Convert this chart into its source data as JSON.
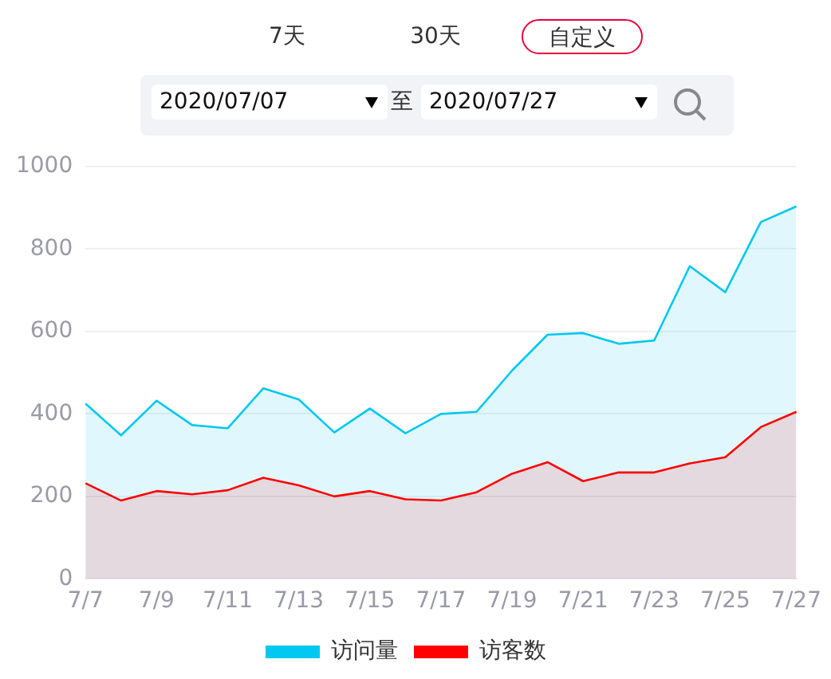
{
  "chart_data": {
    "type": "area",
    "categories": [
      "7/7",
      null,
      "7/9",
      null,
      "7/11",
      null,
      "7/13",
      null,
      "7/15",
      null,
      "7/17",
      null,
      "7/19",
      null,
      "7/21",
      null,
      "7/23",
      null,
      "7/25",
      null,
      "7/27"
    ],
    "series": [
      {
        "name": "访问量",
        "color": "#00c8f0",
        "values": [
          425,
          348,
          432,
          373,
          365,
          462,
          435,
          355,
          413,
          353,
          400,
          405,
          505,
          592,
          596,
          570,
          578,
          758,
          695,
          865,
          903
        ]
      },
      {
        "name": "访客数",
        "color": "#ff0000",
        "values": [
          232,
          190,
          213,
          205,
          215,
          245,
          227,
          200,
          213,
          193,
          190,
          210,
          255,
          283,
          237,
          258,
          258,
          280,
          295,
          368,
          405
        ]
      }
    ],
    "ylim": [
      0,
      1000
    ],
    "yticks": [
      0,
      200,
      400,
      600,
      800,
      1000
    ],
    "grid": "y",
    "legend": "bottom",
    "annotations": [
      "7天",
      "30天",
      "自定义",
      "2020/07/07",
      "至",
      "2020/07/27"
    ]
  }
}
